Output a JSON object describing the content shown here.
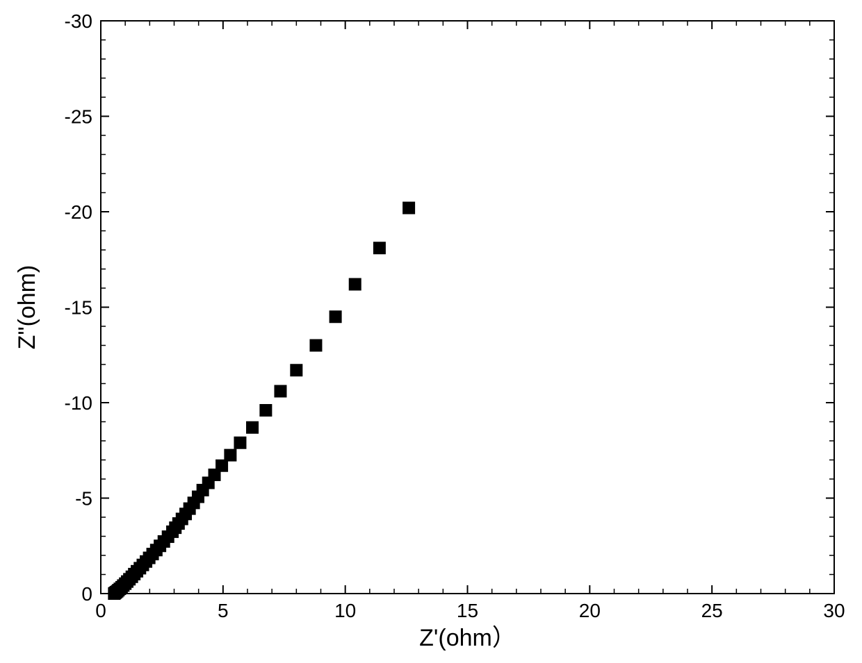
{
  "chart": {
    "type": "scatter",
    "background_color": "#ffffff",
    "plot_border_color": "#000000",
    "plot_border_width": 2,
    "xlabel": "Z'(ohm）",
    "ylabel": "Z\"(ohm)",
    "label_fontsize": 34,
    "tick_fontsize": 28,
    "tick_color": "#000000",
    "xlim": [
      0,
      30
    ],
    "ylim": [
      0,
      -30
    ],
    "xticks_major": [
      0,
      5,
      10,
      15,
      20,
      25,
      30
    ],
    "xticks_minor": [
      1,
      2,
      3,
      4,
      6,
      7,
      8,
      9,
      11,
      12,
      13,
      14,
      16,
      17,
      18,
      19,
      21,
      22,
      23,
      24,
      26,
      27,
      28,
      29
    ],
    "yticks_major": [
      0,
      -5,
      -10,
      -15,
      -20,
      -25,
      -30
    ],
    "yticks_minor": [
      -1,
      -2,
      -3,
      -4,
      -6,
      -7,
      -8,
      -9,
      -11,
      -12,
      -13,
      -14,
      -16,
      -17,
      -18,
      -19,
      -21,
      -22,
      -23,
      -24,
      -26,
      -27,
      -28,
      -29
    ],
    "marker": {
      "shape": "square",
      "size": 18,
      "color": "#000000"
    },
    "x": [
      0.55,
      0.58,
      0.62,
      0.67,
      0.72,
      0.78,
      0.85,
      0.92,
      1.0,
      1.08,
      1.17,
      1.27,
      1.37,
      1.48,
      1.6,
      1.72,
      1.85,
      1.98,
      2.12,
      2.27,
      2.42,
      2.58,
      2.75,
      2.93,
      3.05,
      3.18,
      3.32,
      3.47,
      3.63,
      3.8,
      3.98,
      4.17,
      4.4,
      4.65,
      4.95,
      5.3,
      5.7,
      6.2,
      6.75,
      7.35,
      8.0,
      8.8,
      9.6,
      10.4,
      11.4,
      12.6
    ],
    "y": [
      0.0,
      -0.03,
      -0.07,
      -0.12,
      -0.18,
      -0.25,
      -0.33,
      -0.42,
      -0.52,
      -0.63,
      -0.75,
      -0.88,
      -1.02,
      -1.17,
      -1.33,
      -1.5,
      -1.68,
      -1.87,
      -2.07,
      -2.28,
      -2.5,
      -2.73,
      -2.98,
      -3.24,
      -3.45,
      -3.67,
      -3.91,
      -4.17,
      -4.45,
      -4.75,
      -5.07,
      -5.42,
      -5.8,
      -6.22,
      -6.7,
      -7.25,
      -7.9,
      -8.7,
      -9.6,
      -10.6,
      -11.7,
      -13.0,
      -14.5,
      -16.2,
      -18.1,
      -20.2
    ]
  }
}
